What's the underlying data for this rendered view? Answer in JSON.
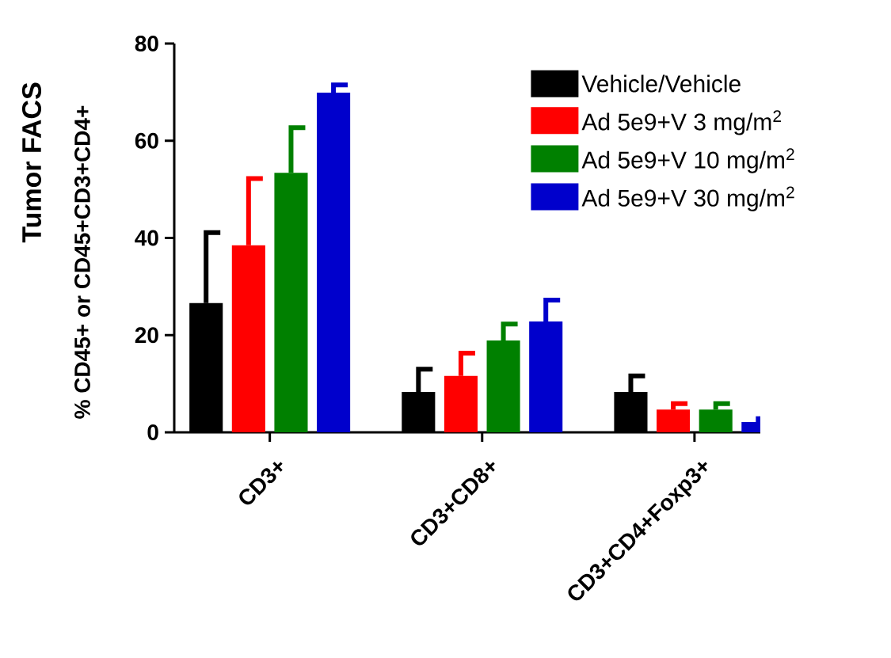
{
  "chart_data": {
    "type": "bar",
    "title": "Tumor FACS",
    "ylabel": "% CD45+ or CD45+CD3+CD4+",
    "categories": [
      "CD3+",
      "CD3+CD8+",
      "CD3+CD4+Foxp3+"
    ],
    "series": [
      {
        "name": "Vehicle/Vehicle",
        "color": "#000000",
        "values": [
          26.6,
          8.3,
          8.3
        ],
        "errors": [
          [
            26.6,
            41.1
          ],
          [
            8.3,
            13.0
          ],
          [
            8.3,
            11.6
          ]
        ]
      },
      {
        "name": "Ad 5e9+V 3 mg/m$^{2}$",
        "color": "#ff0000",
        "values": [
          38.5,
          11.6,
          4.7
        ],
        "errors": [
          [
            38.5,
            52.2
          ],
          [
            11.6,
            16.3
          ],
          [
            4.7,
            5.9
          ]
        ]
      },
      {
        "name": "Ad 5e9+V 10 mg/m$^{2}$",
        "color": "#008000",
        "values": [
          53.4,
          18.9,
          4.7
        ],
        "errors": [
          [
            53.4,
            62.7
          ],
          [
            18.9,
            22.3
          ],
          [
            4.7,
            5.9
          ]
        ]
      },
      {
        "name": "Ad 5e9+V 30 mg/m$^{2}$",
        "color": "#0000cc",
        "values": [
          69.9,
          22.8,
          2.1
        ],
        "errors": [
          [
            69.9,
            71.5
          ],
          [
            22.8,
            27.2
          ],
          [
            2.1,
            2.8
          ]
        ]
      }
    ],
    "ylim": [
      0,
      80
    ],
    "yticks": [
      0,
      20,
      40,
      60,
      80
    ],
    "grid": false,
    "legend": "top right"
  }
}
